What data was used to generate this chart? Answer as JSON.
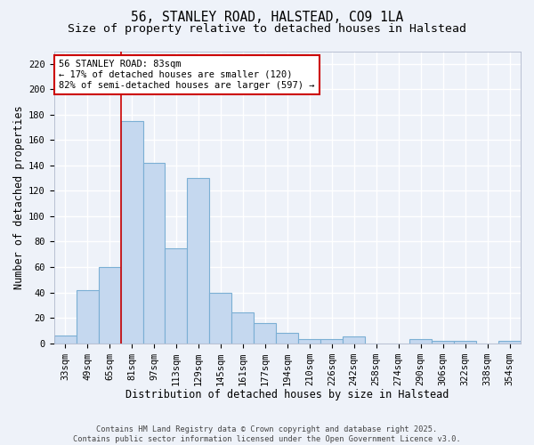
{
  "title": "56, STANLEY ROAD, HALSTEAD, CO9 1LA",
  "subtitle": "Size of property relative to detached houses in Halstead",
  "xlabel": "Distribution of detached houses by size in Halstead",
  "ylabel": "Number of detached properties",
  "categories": [
    "33sqm",
    "49sqm",
    "65sqm",
    "81sqm",
    "97sqm",
    "113sqm",
    "129sqm",
    "145sqm",
    "161sqm",
    "177sqm",
    "194sqm",
    "210sqm",
    "226sqm",
    "242sqm",
    "258sqm",
    "274sqm",
    "290sqm",
    "306sqm",
    "322sqm",
    "338sqm",
    "354sqm"
  ],
  "values": [
    6,
    42,
    60,
    175,
    142,
    75,
    130,
    40,
    24,
    16,
    8,
    3,
    3,
    5,
    0,
    0,
    3,
    2,
    2,
    0,
    2
  ],
  "bar_color": "#c5d8ef",
  "bar_edge_color": "#7bafd4",
  "annotation_text": "56 STANLEY ROAD: 83sqm\n← 17% of detached houses are smaller (120)\n82% of semi-detached houses are larger (597) →",
  "annotation_box_color": "#ffffff",
  "annotation_box_edge_color": "#cc0000",
  "vertical_line_color": "#cc0000",
  "vertical_line_x": 3,
  "ylim": [
    0,
    230
  ],
  "yticks": [
    0,
    20,
    40,
    60,
    80,
    100,
    120,
    140,
    160,
    180,
    200,
    220
  ],
  "background_color": "#eef2f9",
  "grid_color": "#ffffff",
  "footnote": "Contains HM Land Registry data © Crown copyright and database right 2025.\nContains public sector information licensed under the Open Government Licence v3.0.",
  "title_fontsize": 10.5,
  "subtitle_fontsize": 9.5,
  "axis_label_fontsize": 8.5,
  "tick_fontsize": 7.5,
  "annotation_fontsize": 7.5,
  "footnote_fontsize": 6.2
}
